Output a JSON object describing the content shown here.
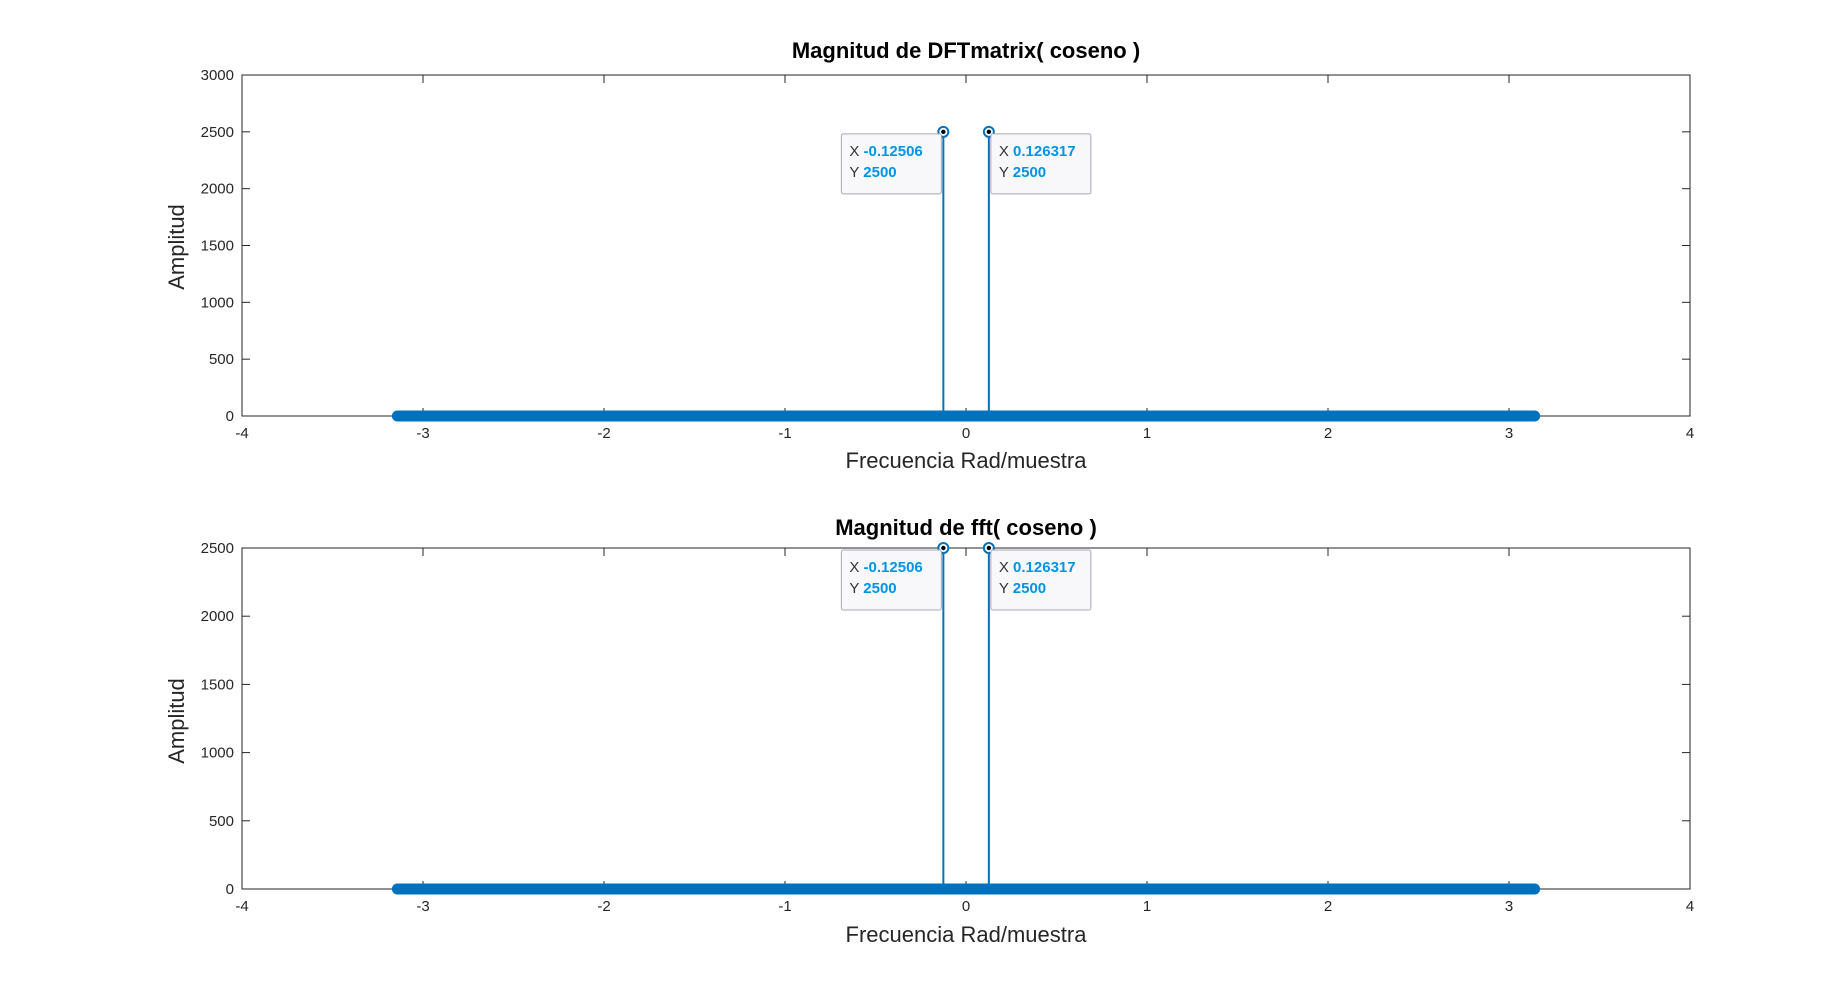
{
  "figure": {
    "background": "#ffffff"
  },
  "chart_data": [
    {
      "type": "stem",
      "title": "Magnitud de DFTmatrix( coseno )",
      "xlabel": "Frecuencia Rad/muestra",
      "ylabel": "Amplitud",
      "xlim": [
        -4,
        4
      ],
      "ylim": [
        0,
        3000
      ],
      "xticks": [
        -4,
        -3,
        -2,
        -1,
        0,
        1,
        2,
        3,
        4
      ],
      "yticks": [
        0,
        500,
        1000,
        1500,
        2000,
        2500,
        3000
      ],
      "baseline_range": [
        -3.14159,
        3.14159
      ],
      "baseline_value": 0,
      "peaks": [
        {
          "x": -0.12506,
          "y": 2500
        },
        {
          "x": 0.126317,
          "y": 2500
        }
      ],
      "datatips": [
        {
          "x_label": "X",
          "x_value": "-0.12506",
          "y_label": "Y",
          "y_value": "2500",
          "side": "left"
        },
        {
          "x_label": "X",
          "x_value": "0.126317",
          "y_label": "Y",
          "y_value": "2500",
          "side": "right"
        }
      ],
      "grid": false,
      "color": "#0072BD"
    },
    {
      "type": "stem",
      "title": "Magnitud de fft( coseno )",
      "xlabel": "Frecuencia Rad/muestra",
      "ylabel": "Amplitud",
      "xlim": [
        -4,
        4
      ],
      "ylim": [
        0,
        2500
      ],
      "xticks": [
        -4,
        -3,
        -2,
        -1,
        0,
        1,
        2,
        3,
        4
      ],
      "yticks": [
        0,
        500,
        1000,
        1500,
        2000,
        2500
      ],
      "baseline_range": [
        -3.14159,
        3.14159
      ],
      "baseline_value": 0,
      "peaks": [
        {
          "x": -0.12506,
          "y": 2500
        },
        {
          "x": 0.126317,
          "y": 2500
        }
      ],
      "datatips": [
        {
          "x_label": "X",
          "x_value": "-0.12506",
          "y_label": "Y",
          "y_value": "2500",
          "side": "left"
        },
        {
          "x_label": "X",
          "x_value": "0.126317",
          "y_label": "Y",
          "y_value": "2500",
          "side": "right"
        }
      ],
      "grid": false,
      "color": "#0072BD"
    }
  ],
  "colors": {
    "line": "#0072BD",
    "tip_value": "#0094E6",
    "tip_label": "#333333",
    "axis": "#262626"
  }
}
